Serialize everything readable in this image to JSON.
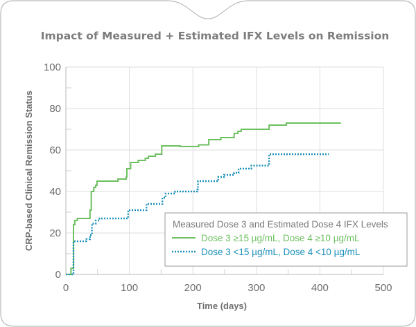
{
  "chart_data": {
    "type": "line",
    "title": "Impact of Measured + Estimated IFX Levels on Remission",
    "xlabel": "Time (days)",
    "ylabel": "CRP-based Clinical Remission Status",
    "xlim": [
      0,
      500
    ],
    "ylim": [
      0,
      100
    ],
    "xticks": [
      0,
      100,
      200,
      300,
      400,
      500
    ],
    "yticks": [
      0,
      20,
      40,
      60,
      80,
      100
    ],
    "grid": true,
    "step": true,
    "legend": {
      "title": "Measured Dose 3 and Estimated Dose 4 IFX Levels",
      "placement": "bottom-right"
    },
    "series": [
      {
        "name": "Dose 3 ≥15 µg/mL, Dose 4 ≥10 µg/mL",
        "color": "#6cbf5f",
        "style": "solid",
        "x": [
          0,
          3,
          8,
          12,
          14,
          18,
          27,
          38,
          40,
          44,
          47,
          49,
          67,
          82,
          95,
          96,
          102,
          114,
          125,
          130,
          141,
          150,
          151,
          180,
          208,
          209,
          221,
          225,
          242,
          244,
          264,
          265,
          271,
          276,
          284,
          318,
          320,
          347,
          433
        ],
        "y": [
          0,
          0,
          3,
          24,
          26,
          27,
          27,
          31,
          40,
          42,
          43,
          45,
          45,
          46,
          47,
          51,
          54,
          55,
          56,
          57,
          58,
          58,
          62,
          61.7,
          61.7,
          62.5,
          62.5,
          65,
          65,
          66,
          66,
          68,
          69,
          70,
          70,
          70,
          72,
          73,
          73
        ]
      },
      {
        "name": "Dose 3 <15 µg/mL, Dose 4 <10 µg/mL",
        "color": "#1a8fb8",
        "style": "dotted",
        "x": [
          0,
          5,
          12,
          27,
          32,
          38,
          41,
          47,
          53,
          96,
          98,
          121,
          127,
          150,
          152,
          157,
          172,
          207,
          208,
          238,
          240,
          249,
          265,
          272,
          292,
          318,
          320,
          414
        ],
        "y": [
          0,
          0,
          16,
          16,
          17,
          19,
          24.5,
          26,
          27,
          27,
          31,
          31,
          34,
          34,
          37,
          39,
          40,
          41,
          45,
          45,
          47,
          48,
          49,
          51,
          52.5,
          52.5,
          58,
          58
        ]
      }
    ]
  }
}
